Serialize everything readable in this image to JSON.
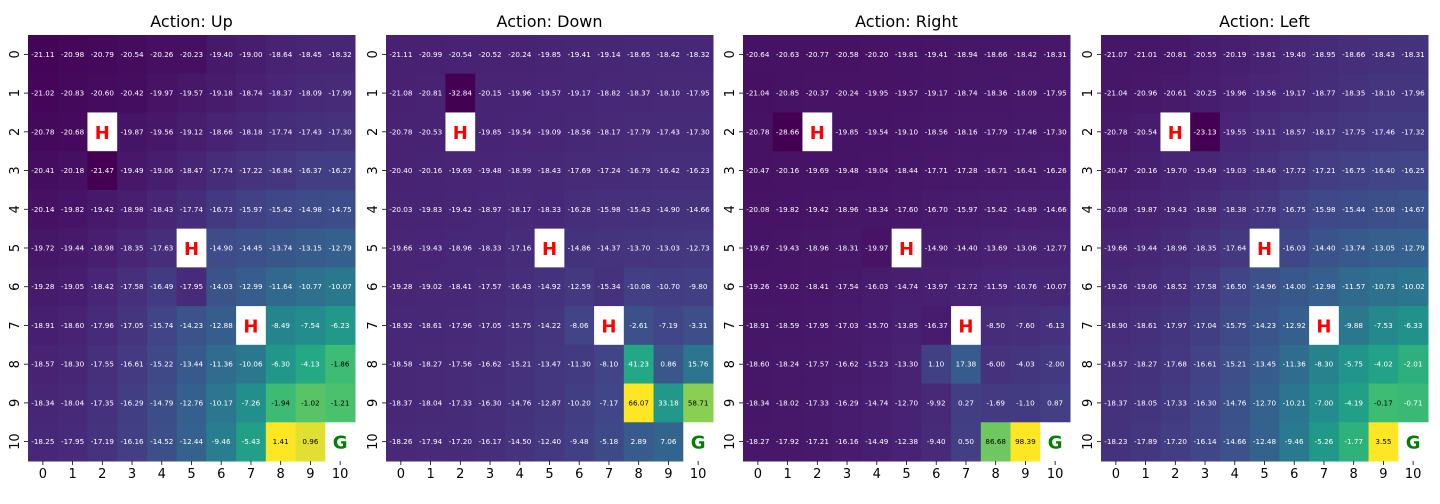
{
  "chart_data": [
    {
      "type": "heatmap",
      "title": "Action: Up",
      "x_ticks": [
        "0",
        "1",
        "2",
        "3",
        "4",
        "5",
        "6",
        "7",
        "8",
        "9",
        "10"
      ],
      "y_ticks": [
        "0",
        "1",
        "2",
        "3",
        "4",
        "5",
        "6",
        "7",
        "8",
        "9",
        "10"
      ],
      "values": [
        [
          -21.11,
          -20.98,
          -20.79,
          -20.54,
          -20.26,
          -20.23,
          -19.4,
          -19.0,
          -18.64,
          -18.45,
          -18.32
        ],
        [
          -21.02,
          -20.83,
          -20.6,
          -20.42,
          -19.97,
          -19.57,
          -19.18,
          -18.74,
          -18.37,
          -18.09,
          -17.99
        ],
        [
          -20.78,
          -20.68,
          null,
          -19.87,
          -19.56,
          -19.12,
          -18.66,
          -18.18,
          -17.74,
          -17.43,
          -17.3
        ],
        [
          -20.41,
          -20.18,
          -21.47,
          -19.49,
          -19.06,
          -18.47,
          -17.74,
          -17.22,
          -16.84,
          -16.37,
          -16.27
        ],
        [
          -20.14,
          -19.82,
          -19.42,
          -18.98,
          -18.43,
          -17.74,
          -16.73,
          -15.97,
          -15.42,
          -14.98,
          -14.75
        ],
        [
          -19.72,
          -19.44,
          -18.98,
          -18.35,
          -17.63,
          null,
          -14.9,
          -14.45,
          -13.74,
          -13.15,
          -12.79
        ],
        [
          -19.28,
          -19.05,
          -18.42,
          -17.58,
          -16.49,
          -17.95,
          -14.03,
          -12.99,
          -11.64,
          -10.77,
          -10.07
        ],
        [
          -18.91,
          -18.6,
          -17.96,
          -17.05,
          -15.74,
          -14.23,
          -12.88,
          null,
          -8.49,
          -7.54,
          -6.23
        ],
        [
          -18.57,
          -18.3,
          -17.55,
          -16.61,
          -15.22,
          -13.44,
          -11.36,
          -10.06,
          -6.3,
          -4.13,
          -1.86
        ],
        [
          -18.34,
          -18.04,
          -17.35,
          -16.29,
          -14.79,
          -12.76,
          -10.17,
          -7.26,
          -1.94,
          -1.02,
          -1.21
        ],
        [
          -18.25,
          -17.95,
          -17.19,
          -16.16,
          -14.52,
          -12.44,
          -9.46,
          -5.43,
          1.41,
          0.96,
          null
        ]
      ],
      "markers": [
        {
          "row": 2,
          "col": 2,
          "label": "H",
          "color": "#ff0000"
        },
        {
          "row": 5,
          "col": 5,
          "label": "H",
          "color": "#ff0000"
        },
        {
          "row": 7,
          "col": 7,
          "label": "H",
          "color": "#ff0000"
        },
        {
          "row": 10,
          "col": 10,
          "label": "G",
          "color": "#008000"
        }
      ],
      "colormap": "viridis",
      "colorbar": false
    },
    {
      "type": "heatmap",
      "title": "Action: Down",
      "x_ticks": [
        "0",
        "1",
        "2",
        "3",
        "4",
        "5",
        "6",
        "7",
        "8",
        "9",
        "10"
      ],
      "y_ticks": [
        "0",
        "1",
        "2",
        "3",
        "4",
        "5",
        "6",
        "7",
        "8",
        "9",
        "10"
      ],
      "values": [
        [
          -21.11,
          -20.99,
          -20.54,
          -20.52,
          -20.24,
          -19.85,
          -19.41,
          -19.14,
          -18.65,
          -18.42,
          -18.32
        ],
        [
          -21.08,
          -20.81,
          -32.84,
          -20.15,
          -19.96,
          -19.57,
          -19.17,
          -18.82,
          -18.37,
          -18.1,
          -17.95
        ],
        [
          -20.78,
          -20.53,
          null,
          -19.85,
          -19.54,
          -19.09,
          -18.56,
          -18.17,
          -17.79,
          -17.43,
          -17.3
        ],
        [
          -20.4,
          -20.16,
          -19.69,
          -19.48,
          -18.99,
          -18.43,
          -17.69,
          -17.24,
          -16.79,
          -16.42,
          -16.23
        ],
        [
          -20.03,
          -19.83,
          -19.42,
          -18.97,
          -18.17,
          -18.33,
          -16.28,
          -15.98,
          -15.43,
          -14.9,
          -14.66
        ],
        [
          -19.66,
          -19.43,
          -18.96,
          -18.33,
          -17.16,
          null,
          -14.86,
          -14.37,
          -13.7,
          -13.03,
          -12.73
        ],
        [
          -19.28,
          -19.02,
          -18.41,
          -17.57,
          -16.43,
          -14.92,
          -12.59,
          -15.34,
          -10.08,
          -10.7,
          -9.8
        ],
        [
          -18.92,
          -18.61,
          -17.96,
          -17.05,
          -15.75,
          -14.22,
          -8.06,
          null,
          -2.61,
          -7.19,
          -3.31
        ],
        [
          -18.58,
          -18.27,
          -17.56,
          -16.62,
          -15.21,
          -13.47,
          -11.3,
          -8.1,
          41.23,
          0.86,
          15.76
        ],
        [
          -18.37,
          -18.04,
          -17.33,
          -16.3,
          -14.76,
          -12.87,
          -10.2,
          -7.17,
          66.07,
          33.18,
          58.71
        ],
        [
          -18.26,
          -17.94,
          -17.2,
          -16.17,
          -14.5,
          -12.4,
          -9.48,
          -5.18,
          2.89,
          7.06,
          null
        ]
      ],
      "markers": [
        {
          "row": 2,
          "col": 2,
          "label": "H",
          "color": "#ff0000"
        },
        {
          "row": 5,
          "col": 5,
          "label": "H",
          "color": "#ff0000"
        },
        {
          "row": 7,
          "col": 7,
          "label": "H",
          "color": "#ff0000"
        },
        {
          "row": 10,
          "col": 10,
          "label": "G",
          "color": "#008000"
        }
      ],
      "colormap": "viridis",
      "colorbar": false
    },
    {
      "type": "heatmap",
      "title": "Action: Right",
      "x_ticks": [
        "0",
        "1",
        "2",
        "3",
        "4",
        "5",
        "6",
        "7",
        "8",
        "9",
        "10"
      ],
      "y_ticks": [
        "0",
        "1",
        "2",
        "3",
        "4",
        "5",
        "6",
        "7",
        "8",
        "9",
        "10"
      ],
      "values": [
        [
          -20.64,
          -20.63,
          -20.77,
          -20.58,
          -20.2,
          -19.81,
          -19.41,
          -18.94,
          -18.66,
          -18.42,
          -18.31
        ],
        [
          -21.04,
          -20.85,
          -20.37,
          -20.24,
          -19.95,
          -19.57,
          -19.17,
          -18.74,
          -18.36,
          -18.09,
          -17.95
        ],
        [
          -20.78,
          -28.66,
          null,
          -19.85,
          -19.54,
          -19.1,
          -18.56,
          -18.16,
          -17.79,
          -17.46,
          -17.3
        ],
        [
          -20.47,
          -20.16,
          -19.69,
          -19.48,
          -19.04,
          -18.44,
          -17.71,
          -17.28,
          -16.71,
          -16.41,
          -16.26
        ],
        [
          -20.08,
          -19.82,
          -19.42,
          -18.96,
          -18.34,
          -17.6,
          -16.7,
          -15.97,
          -15.42,
          -14.89,
          -14.66
        ],
        [
          -19.67,
          -19.43,
          -18.96,
          -18.31,
          -19.97,
          null,
          -14.9,
          -14.4,
          -13.69,
          -13.06,
          -12.77
        ],
        [
          -19.26,
          -19.02,
          -18.41,
          -17.54,
          -16.03,
          -14.74,
          -13.97,
          -12.72,
          -11.59,
          -10.76,
          -10.07
        ],
        [
          -18.91,
          -18.59,
          -17.95,
          -17.03,
          -15.7,
          -13.85,
          -16.37,
          null,
          -8.5,
          -7.6,
          -6.13
        ],
        [
          -18.6,
          -18.24,
          -17.57,
          -16.62,
          -15.23,
          -13.3,
          1.1,
          17.38,
          -6.0,
          -4.03,
          -2.0
        ],
        [
          -18.34,
          -18.02,
          -17.33,
          -16.29,
          -14.74,
          -12.7,
          -9.92,
          0.27,
          -1.69,
          -1.1,
          0.87
        ],
        [
          -18.27,
          -17.92,
          -17.21,
          -16.16,
          -14.49,
          -12.38,
          -9.4,
          0.5,
          86.68,
          98.39,
          null
        ]
      ],
      "markers": [
        {
          "row": 2,
          "col": 2,
          "label": "H",
          "color": "#ff0000"
        },
        {
          "row": 5,
          "col": 5,
          "label": "H",
          "color": "#ff0000"
        },
        {
          "row": 7,
          "col": 7,
          "label": "H",
          "color": "#ff0000"
        },
        {
          "row": 10,
          "col": 10,
          "label": "G",
          "color": "#008000"
        }
      ],
      "colormap": "viridis",
      "colorbar": false
    },
    {
      "type": "heatmap",
      "title": "Action: Left",
      "x_ticks": [
        "0",
        "1",
        "2",
        "3",
        "4",
        "5",
        "6",
        "7",
        "8",
        "9",
        "10"
      ],
      "y_ticks": [
        "0",
        "1",
        "2",
        "3",
        "4",
        "5",
        "6",
        "7",
        "8",
        "9",
        "10"
      ],
      "values": [
        [
          -21.07,
          -21.01,
          -20.81,
          -20.55,
          -20.19,
          -19.81,
          -19.4,
          -18.95,
          -18.66,
          -18.43,
          -18.31
        ],
        [
          -21.04,
          -20.96,
          -20.61,
          -20.25,
          -19.96,
          -19.56,
          -19.17,
          -18.77,
          -18.35,
          -18.1,
          -17.96
        ],
        [
          -20.78,
          -20.54,
          null,
          -23.13,
          -19.55,
          -19.11,
          -18.57,
          -18.17,
          -17.75,
          -17.46,
          -17.32
        ],
        [
          -20.47,
          -20.16,
          -19.7,
          -19.49,
          -19.03,
          -18.46,
          -17.72,
          -17.21,
          -16.75,
          -16.4,
          -16.25
        ],
        [
          -20.08,
          -19.87,
          -19.43,
          -18.98,
          -18.38,
          -17.78,
          -16.75,
          -15.98,
          -15.44,
          -15.08,
          -14.67
        ],
        [
          -19.66,
          -19.44,
          -18.96,
          -18.35,
          -17.64,
          null,
          -16.03,
          -14.4,
          -13.74,
          -13.05,
          -12.79
        ],
        [
          -19.26,
          -19.06,
          -18.52,
          -17.58,
          -16.5,
          -14.96,
          -14.0,
          -12.98,
          -11.57,
          -10.73,
          -10.02
        ],
        [
          -18.9,
          -18.61,
          -17.97,
          -17.04,
          -15.75,
          -14.23,
          -12.92,
          null,
          -9.88,
          -7.53,
          -6.33
        ],
        [
          -18.57,
          -18.27,
          -17.68,
          -16.61,
          -15.21,
          -13.45,
          -11.36,
          -8.3,
          -5.75,
          -4.02,
          -2.01
        ],
        [
          -18.37,
          -18.05,
          -17.33,
          -16.3,
          -14.76,
          -12.7,
          -10.21,
          -7.0,
          -4.19,
          -0.17,
          -0.71
        ],
        [
          -18.23,
          -17.89,
          -17.2,
          -16.14,
          -14.66,
          -12.48,
          -9.46,
          -5.26,
          -1.77,
          3.55,
          null
        ]
      ],
      "markers": [
        {
          "row": 2,
          "col": 2,
          "label": "H",
          "color": "#ff0000"
        },
        {
          "row": 5,
          "col": 5,
          "label": "H",
          "color": "#ff0000"
        },
        {
          "row": 7,
          "col": 7,
          "label": "H",
          "color": "#ff0000"
        },
        {
          "row": 10,
          "col": 10,
          "label": "G",
          "color": "#008000"
        }
      ],
      "colormap": "viridis",
      "colorbar": false
    }
  ]
}
